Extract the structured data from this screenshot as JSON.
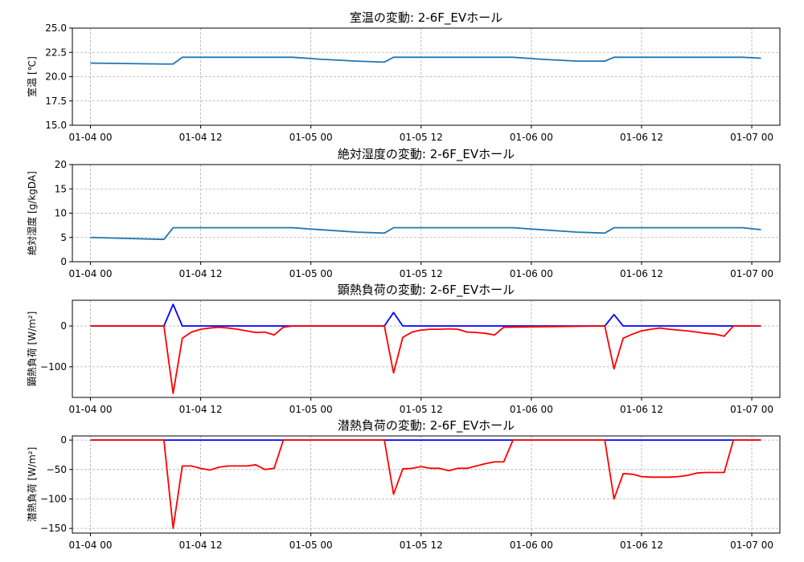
{
  "chart_data": [
    {
      "type": "line",
      "title": "室温の変動: 2-6F_EVホール",
      "ylabel": "室温 [℃]",
      "ylim": [
        15,
        25
      ],
      "yticks": [
        15.0,
        17.5,
        20.0,
        22.5,
        25.0
      ],
      "ytick_labels": [
        "15.0",
        "17.5",
        "20.0",
        "22.5",
        "25.0"
      ],
      "xticks": [
        "2024-01-04 00:00",
        "2024-01-04 12:00",
        "2024-01-05 00:00",
        "2024-01-05 12:00",
        "2024-01-06 00:00",
        "2024-01-06 12:00",
        "2024-01-07 00:00"
      ],
      "xtick_labels": [
        "01-04 00",
        "01-04 12",
        "01-05 00",
        "01-05 12",
        "01-06 00",
        "01-06 12",
        "01-07 00"
      ],
      "grid": true,
      "series": [
        {
          "color": "#1f77b4",
          "x": [
            "2024-01-04 00:00",
            "2024-01-04 08:00",
            "2024-01-04 09:00",
            "2024-01-04 10:00",
            "2024-01-04 22:00",
            "2024-01-05 01:00",
            "2024-01-05 05:00",
            "2024-01-05 08:00",
            "2024-01-05 09:00",
            "2024-01-05 10:00",
            "2024-01-05 22:00",
            "2024-01-06 01:00",
            "2024-01-06 05:00",
            "2024-01-06 08:00",
            "2024-01-06 09:00",
            "2024-01-06 10:00",
            "2024-01-06 23:00",
            "2024-01-07 01:00"
          ],
          "y": [
            21.4,
            21.3,
            21.3,
            22.0,
            22.0,
            21.8,
            21.6,
            21.5,
            22.0,
            22.0,
            22.0,
            21.8,
            21.6,
            21.6,
            22.0,
            22.0,
            22.0,
            21.9
          ]
        }
      ]
    },
    {
      "type": "line",
      "title": "絶対湿度の変動: 2-6F_EVホール",
      "ylabel": "絶対湿度 [g/kgDA]",
      "ylim": [
        0,
        20
      ],
      "yticks": [
        0,
        5,
        10,
        15,
        20
      ],
      "ytick_labels": [
        "0",
        "5",
        "10",
        "15",
        "20"
      ],
      "xticks": [
        "2024-01-04 00:00",
        "2024-01-04 12:00",
        "2024-01-05 00:00",
        "2024-01-05 12:00",
        "2024-01-06 00:00",
        "2024-01-06 12:00",
        "2024-01-07 00:00"
      ],
      "xtick_labels": [
        "01-04 00",
        "01-04 12",
        "01-05 00",
        "01-05 12",
        "01-06 00",
        "01-06 12",
        "01-07 00"
      ],
      "grid": true,
      "series": [
        {
          "color": "#1f77b4",
          "x": [
            "2024-01-04 00:00",
            "2024-01-04 08:00",
            "2024-01-04 09:00",
            "2024-01-04 10:00",
            "2024-01-04 22:00",
            "2024-01-05 01:00",
            "2024-01-05 05:00",
            "2024-01-05 08:00",
            "2024-01-05 09:00",
            "2024-01-05 10:00",
            "2024-01-05 22:00",
            "2024-01-06 01:00",
            "2024-01-06 05:00",
            "2024-01-06 08:00",
            "2024-01-06 09:00",
            "2024-01-06 10:00",
            "2024-01-06 23:00",
            "2024-01-07 01:00"
          ],
          "y": [
            5.0,
            4.6,
            7.0,
            7.0,
            7.0,
            6.6,
            6.1,
            5.9,
            7.0,
            7.0,
            7.0,
            6.6,
            6.1,
            5.9,
            7.0,
            7.0,
            7.0,
            6.6
          ]
        }
      ]
    },
    {
      "type": "line",
      "title": "顕熱負荷の変動: 2-6F_EVホール",
      "ylabel": "顕熱負荷 [W/m²]",
      "ylim": [
        -175,
        63
      ],
      "yticks": [
        -100,
        0
      ],
      "ytick_labels": [
        "−100",
        "0"
      ],
      "xticks": [
        "2024-01-04 00:00",
        "2024-01-04 12:00",
        "2024-01-05 00:00",
        "2024-01-05 12:00",
        "2024-01-06 00:00",
        "2024-01-06 12:00",
        "2024-01-07 00:00"
      ],
      "xtick_labels": [
        "01-04 00",
        "01-04 12",
        "01-05 00",
        "01-05 12",
        "01-06 00",
        "01-06 12",
        "01-07 00"
      ],
      "grid": true,
      "series": [
        {
          "color": "#0000ff",
          "x": [
            "2024-01-04 00:00",
            "2024-01-04 08:00",
            "2024-01-04 09:00",
            "2024-01-04 10:00",
            "2024-01-05 08:00",
            "2024-01-05 09:00",
            "2024-01-05 10:00",
            "2024-01-06 08:00",
            "2024-01-06 09:00",
            "2024-01-06 10:00",
            "2024-01-07 01:00"
          ],
          "y": [
            0,
            0,
            53,
            0,
            0,
            33,
            0,
            0,
            28,
            0,
            0
          ]
        },
        {
          "color": "#ff0000",
          "x": [
            "2024-01-04 00:00",
            "2024-01-04 08:00",
            "2024-01-04 09:00",
            "2024-01-04 10:00",
            "2024-01-04 11:00",
            "2024-01-04 12:00",
            "2024-01-04 13:00",
            "2024-01-04 14:00",
            "2024-01-04 15:00",
            "2024-01-04 16:00",
            "2024-01-04 17:00",
            "2024-01-04 18:00",
            "2024-01-04 19:00",
            "2024-01-04 20:00",
            "2024-01-04 21:00",
            "2024-01-04 22:00",
            "2024-01-05 08:00",
            "2024-01-05 09:00",
            "2024-01-05 10:00",
            "2024-01-05 11:00",
            "2024-01-05 12:00",
            "2024-01-05 13:00",
            "2024-01-05 14:00",
            "2024-01-05 15:00",
            "2024-01-05 16:00",
            "2024-01-05 17:00",
            "2024-01-05 18:00",
            "2024-01-05 19:00",
            "2024-01-05 20:00",
            "2024-01-05 21:00",
            "2024-01-06 08:00",
            "2024-01-06 09:00",
            "2024-01-06 10:00",
            "2024-01-06 11:00",
            "2024-01-06 12:00",
            "2024-01-06 13:00",
            "2024-01-06 14:00",
            "2024-01-06 15:00",
            "2024-01-06 16:00",
            "2024-01-06 17:00",
            "2024-01-06 18:00",
            "2024-01-06 19:00",
            "2024-01-06 20:00",
            "2024-01-06 21:00",
            "2024-01-06 22:00",
            "2024-01-07 01:00"
          ],
          "y": [
            0,
            0,
            -165,
            -30,
            -15,
            -8,
            -5,
            -3,
            -5,
            -8,
            -12,
            -16,
            -15,
            -22,
            -3,
            0,
            0,
            -115,
            -28,
            -15,
            -10,
            -8,
            -8,
            -7,
            -8,
            -15,
            -16,
            -18,
            -22,
            -3,
            0,
            -105,
            -30,
            -20,
            -12,
            -8,
            -5,
            -8,
            -10,
            -12,
            -15,
            -18,
            -20,
            -25,
            0,
            0
          ]
        }
      ]
    },
    {
      "type": "line",
      "title": "潜熱負荷の変動: 2-6F_EVホール",
      "ylabel": "潜熱負荷 [W/m²]",
      "ylim": [
        -158,
        7
      ],
      "yticks": [
        -150,
        -100,
        -50,
        0
      ],
      "ytick_labels": [
        "−150",
        "−100",
        "−50",
        "0"
      ],
      "xticks": [
        "2024-01-04 00:00",
        "2024-01-04 12:00",
        "2024-01-05 00:00",
        "2024-01-05 12:00",
        "2024-01-06 00:00",
        "2024-01-06 12:00",
        "2024-01-07 00:00"
      ],
      "xtick_labels": [
        "01-04 00",
        "01-04 12",
        "01-05 00",
        "01-05 12",
        "01-06 00",
        "01-06 12",
        "01-07 00"
      ],
      "grid": true,
      "series": [
        {
          "color": "#0000ff",
          "x": [
            "2024-01-04 00:00",
            "2024-01-07 01:00"
          ],
          "y": [
            0,
            0
          ]
        },
        {
          "color": "#ff0000",
          "x": [
            "2024-01-04 00:00",
            "2024-01-04 08:00",
            "2024-01-04 09:00",
            "2024-01-04 10:00",
            "2024-01-04 11:00",
            "2024-01-04 12:00",
            "2024-01-04 13:00",
            "2024-01-04 14:00",
            "2024-01-04 15:00",
            "2024-01-04 16:00",
            "2024-01-04 17:00",
            "2024-01-04 18:00",
            "2024-01-04 19:00",
            "2024-01-04 20:00",
            "2024-01-04 21:00",
            "2024-01-04 22:00",
            "2024-01-05 08:00",
            "2024-01-05 09:00",
            "2024-01-05 10:00",
            "2024-01-05 11:00",
            "2024-01-05 12:00",
            "2024-01-05 13:00",
            "2024-01-05 14:00",
            "2024-01-05 15:00",
            "2024-01-05 16:00",
            "2024-01-05 17:00",
            "2024-01-05 18:00",
            "2024-01-05 19:00",
            "2024-01-05 20:00",
            "2024-01-05 21:00",
            "2024-01-05 22:00",
            "2024-01-06 08:00",
            "2024-01-06 09:00",
            "2024-01-06 10:00",
            "2024-01-06 11:00",
            "2024-01-06 12:00",
            "2024-01-06 13:00",
            "2024-01-06 14:00",
            "2024-01-06 15:00",
            "2024-01-06 16:00",
            "2024-01-06 17:00",
            "2024-01-06 18:00",
            "2024-01-06 19:00",
            "2024-01-06 20:00",
            "2024-01-06 21:00",
            "2024-01-06 22:00",
            "2024-01-07 01:00"
          ],
          "y": [
            0,
            0,
            -150,
            -44,
            -44,
            -48,
            -51,
            -46,
            -44,
            -44,
            -44,
            -42,
            -50,
            -48,
            0,
            0,
            0,
            -92,
            -49,
            -48,
            -45,
            -48,
            -48,
            -52,
            -48,
            -48,
            -44,
            -40,
            -37,
            -37,
            0,
            0,
            -100,
            -57,
            -58,
            -62,
            -63,
            -63,
            -63,
            -62,
            -60,
            -56,
            -55,
            -55,
            -55,
            0,
            0
          ]
        }
      ]
    }
  ]
}
